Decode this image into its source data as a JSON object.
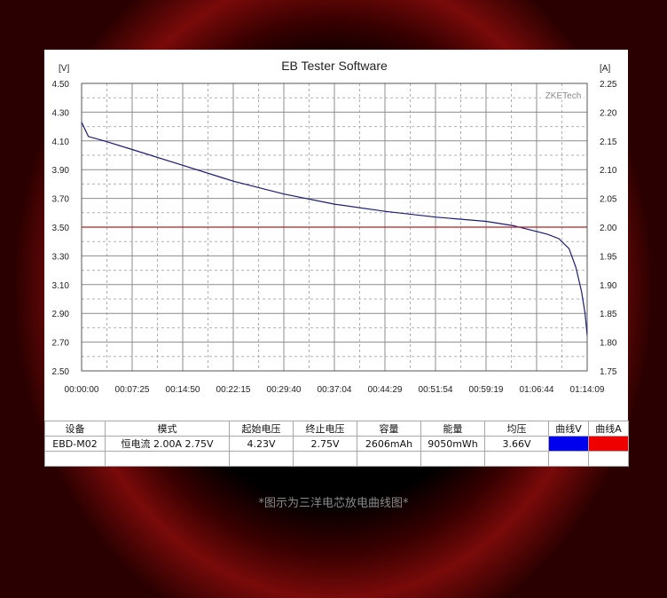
{
  "chart_data": {
    "type": "line",
    "title": "EB Tester Software",
    "watermark": "ZKETech",
    "left_axis_unit": "[V]",
    "right_axis_unit": "[A]",
    "ylim_left": [
      2.5,
      4.5
    ],
    "ylim_right": [
      1.75,
      2.25
    ],
    "yticks_left": [
      "2.50",
      "2.70",
      "2.90",
      "3.10",
      "3.30",
      "3.50",
      "3.70",
      "3.90",
      "4.10",
      "4.30",
      "4.50"
    ],
    "yticks_right": [
      "1.75",
      "1.80",
      "1.85",
      "1.90",
      "1.95",
      "2.00",
      "2.05",
      "2.10",
      "2.15",
      "2.20",
      "2.25"
    ],
    "xticks": [
      "00:00:00",
      "00:07:25",
      "00:14:50",
      "00:22:15",
      "00:29:40",
      "00:37:04",
      "00:44:29",
      "00:51:54",
      "00:59:19",
      "01:06:44",
      "01:14:09"
    ],
    "xlim_seconds": [
      0,
      4449
    ],
    "grid": true,
    "series": [
      {
        "color": "#1a1a7a",
        "axis": "left",
        "x_seconds": [
          0,
          60,
          200,
          445,
          890,
          1335,
          1780,
          2225,
          2670,
          3115,
          3560,
          3800,
          4006,
          4100,
          4200,
          4290,
          4350,
          4400,
          4430,
          4449
        ],
        "values": [
          4.23,
          4.13,
          4.1,
          4.04,
          3.93,
          3.82,
          3.73,
          3.66,
          3.61,
          3.57,
          3.54,
          3.51,
          3.47,
          3.45,
          3.42,
          3.35,
          3.22,
          3.05,
          2.9,
          2.75
        ]
      },
      {
        "color": "#b02020",
        "axis": "right",
        "x_seconds": [
          0,
          4449
        ],
        "values": [
          2.0,
          2.0
        ]
      }
    ]
  },
  "table": {
    "headers": [
      "设备",
      "模式",
      "起始电压",
      "终止电压",
      "容量",
      "能量",
      "均压",
      "曲线V",
      "曲线A"
    ],
    "row": [
      "EBD-M02",
      "恒电流  2.00A  2.75V",
      "4.23V",
      "2.75V",
      "2606mAh",
      "9050mWh",
      "3.66V"
    ],
    "swatch_v": "#0000ee",
    "swatch_a": "#ee0000"
  },
  "caption": "*图示为三洋电芯放电曲线图*"
}
